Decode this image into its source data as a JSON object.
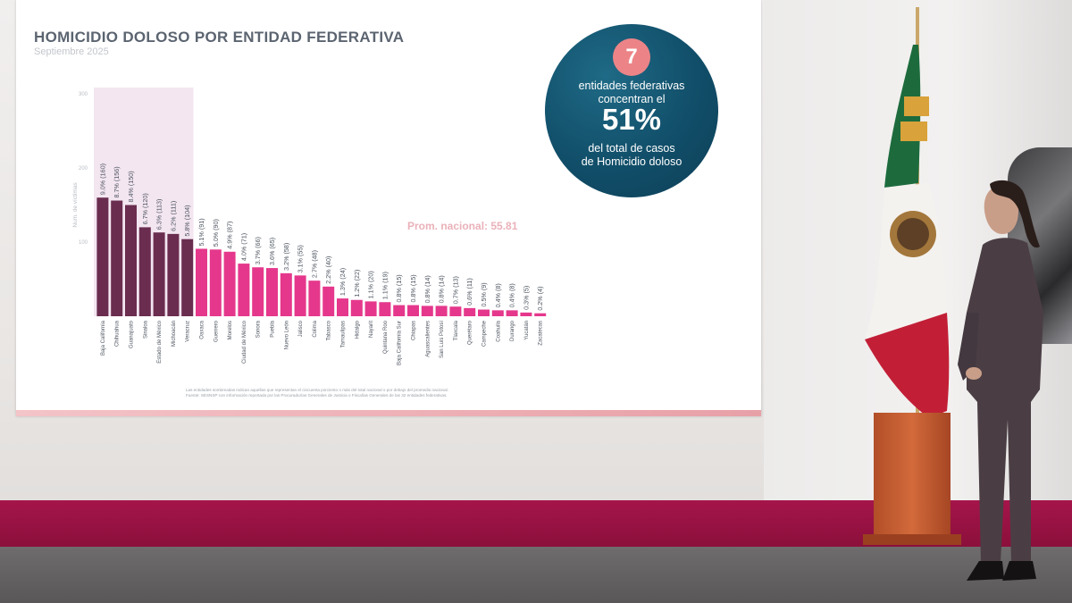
{
  "slide": {
    "title": "HOMICIDIO DOLOSO POR ENTIDAD FEDERATIVA",
    "subtitle": "Septiembre 2025",
    "note_line1": "Las entidades sombreadas indican aquellas que representan el cincuenta porciento o más del total nacional o por debajo del promedio nacional.",
    "note_line2": "Fuente: SESNSP con información reportada por las Procuradurías Generales de Justicia o Fiscalías Generales de las 32 entidades federativas."
  },
  "callout": {
    "badge": "7",
    "line1": "entidades federativas",
    "line2": "concentran el",
    "big": "51%",
    "line3": "del total de casos",
    "line4": "de Homicidio doloso"
  },
  "chart_data": {
    "type": "bar",
    "ylabel": "Num. de víctimas",
    "ylim": [
      0,
      300
    ],
    "yticks": [
      100,
      200,
      300
    ],
    "average_label": "Prom. nacional: 55.81",
    "average_value": 55.81,
    "highlight_count": 7,
    "colors": {
      "highlight": "#6a2d4f",
      "rest": "#e5388c",
      "shade": "#f3e6f1",
      "average_label": "#eab1b9"
    },
    "categories": [
      "Baja California",
      "Chihuahua",
      "Guanajuato",
      "Sinaloa",
      "Estado de México",
      "Michoacán",
      "Veracruz",
      "Oaxaca",
      "Guerrero",
      "Morelos",
      "Ciudad de México",
      "Sonora",
      "Puebla",
      "Nuevo León",
      "Jalisco",
      "Colima",
      "Tabasco",
      "Tamaulipas",
      "Hidalgo",
      "Nayarit",
      "Quintana Roo",
      "Baja California Sur",
      "Chiapas",
      "Aguascalientes",
      "San Luis Potosí",
      "Tlaxcala",
      "Querétaro",
      "Campeche",
      "Coahuila",
      "Durango",
      "Yucatán",
      "Zacatecas"
    ],
    "values": [
      160,
      156,
      150,
      120,
      113,
      111,
      104,
      91,
      90,
      87,
      71,
      66,
      65,
      58,
      55,
      48,
      40,
      24,
      22,
      20,
      19,
      15,
      15,
      14,
      14,
      13,
      11,
      9,
      8,
      8,
      5,
      4
    ],
    "labels": [
      "9.0% (160)",
      "8.7% (156)",
      "8.4% (150)",
      "6.7% (120)",
      "6.3% (113)",
      "6.2% (111)",
      "5.8% (104)",
      "5.1% (91)",
      "5.0% (90)",
      "4.9% (87)",
      "4.0% (71)",
      "3.7% (66)",
      "3.6% (65)",
      "3.2% (58)",
      "3.1% (55)",
      "2.7% (48)",
      "2.2% (40)",
      "1.3% (24)",
      "1.2% (22)",
      "1.1% (20)",
      "1.1% (19)",
      "0.8% (15)",
      "0.8% (15)",
      "0.8% (14)",
      "0.8% (14)",
      "0.7% (13)",
      "0.6% (11)",
      "0.5% (9)",
      "0.4% (8)",
      "0.4% (8)",
      "0.3% (5)",
      "0.2% (4)"
    ]
  }
}
